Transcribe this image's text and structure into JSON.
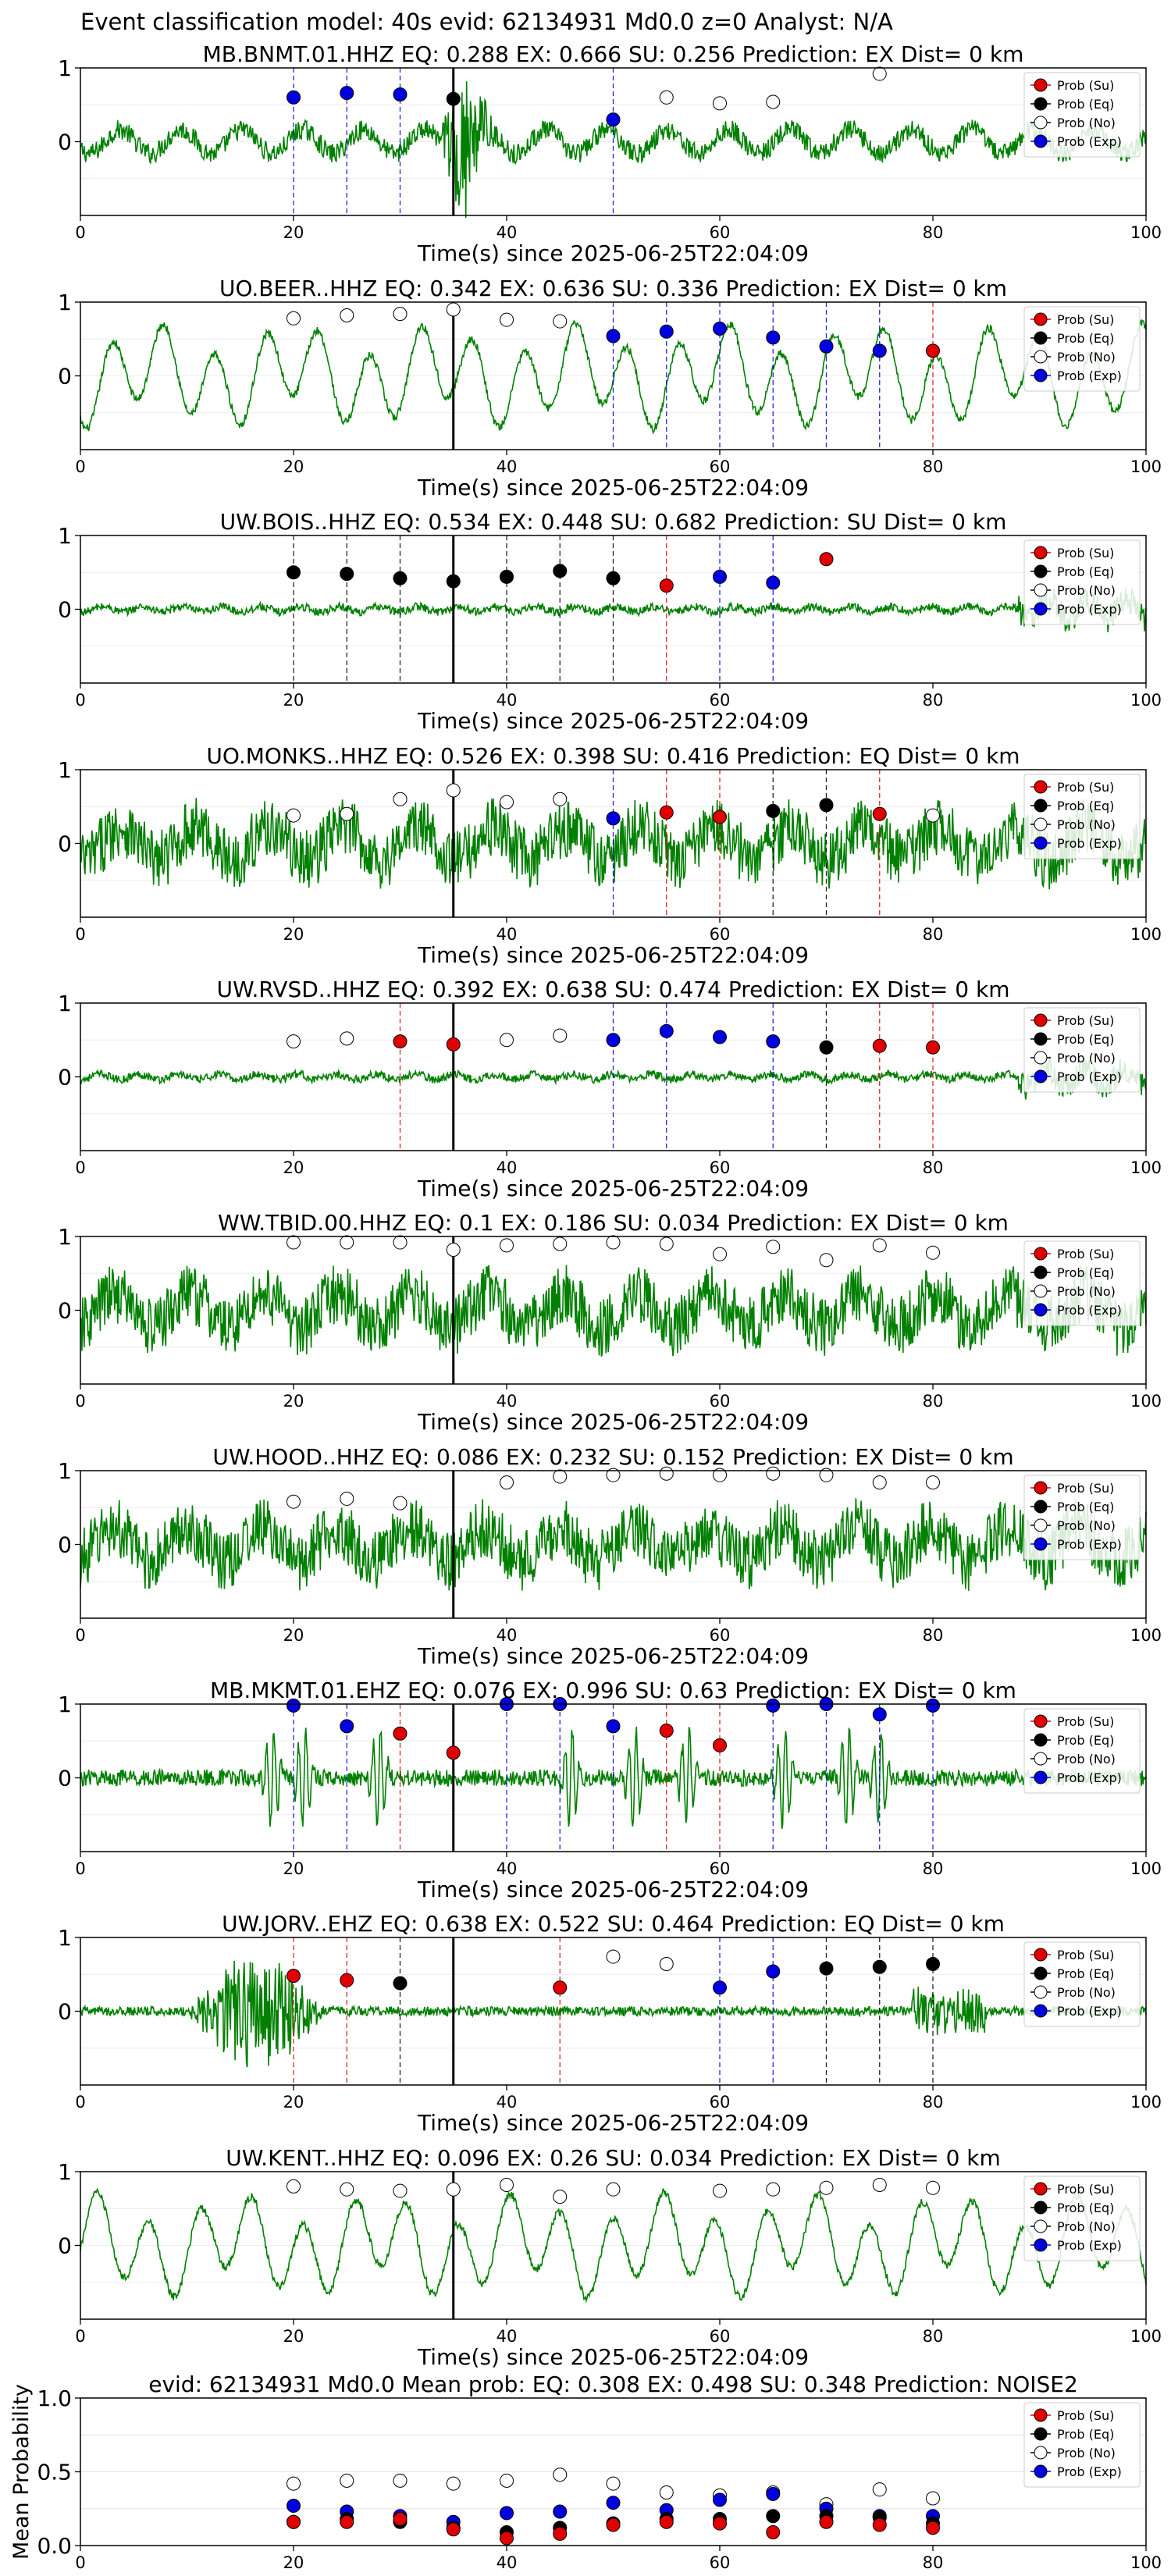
{
  "figure_title": "Event classification model: 40s evid: 62134931 Md0.0 z=0 Analyst: N/A",
  "legend_labels": {
    "su": "Prob (Su)",
    "eq": "Prob (Eq)",
    "no": "Prob (No)",
    "exp": "Prob (Exp)"
  },
  "colors": {
    "su": "#e00000",
    "eq": "#000000",
    "no": "#ffffff",
    "exp": "#0000e0",
    "waveform": "#008000"
  },
  "chart_data": [
    {
      "type": "line",
      "title": "MB.BNMT.01.HHZ   EQ: 0.288  EX: 0.666  SU: 0.256   Prediction: EX    Dist= 0 km",
      "xlabel": "Time(s) since 2025-06-25T22:04:09",
      "xlim": [
        0,
        100
      ],
      "ylim": [
        -1,
        1
      ],
      "yticks": [
        "0",
        "1"
      ],
      "xticks": [
        "0",
        "20",
        "40",
        "60",
        "80",
        "100"
      ],
      "event_line_x": 35,
      "waveform_style": "moderate",
      "grid": true,
      "legend": "top-right",
      "windows": [
        20,
        25,
        30,
        35,
        40,
        45,
        50,
        55,
        60,
        65,
        70,
        75,
        80
      ],
      "points": {
        "su": [],
        "eq": [
          [
            35,
            0.58
          ]
        ],
        "no": [
          [
            55,
            0.6
          ],
          [
            60,
            0.52
          ],
          [
            65,
            0.54
          ],
          [
            75,
            0.92
          ]
        ],
        "exp": [
          [
            20,
            0.6
          ],
          [
            25,
            0.66
          ],
          [
            30,
            0.64
          ],
          [
            50,
            0.3
          ]
        ]
      },
      "vlines": {
        "exp": [
          20,
          25,
          30,
          50
        ]
      }
    },
    {
      "type": "line",
      "title": "UO.BEER..HHZ   EQ: 0.342  EX: 0.636  SU: 0.336   Prediction: EX    Dist= 0 km",
      "xlabel": "Time(s) since 2025-06-25T22:04:09",
      "xlim": [
        0,
        100
      ],
      "ylim": [
        -1,
        1
      ],
      "yticks": [
        "0",
        "1"
      ],
      "xticks": [
        "0",
        "20",
        "40",
        "60",
        "80",
        "100"
      ],
      "event_line_x": 35,
      "waveform_style": "oscillatory",
      "grid": true,
      "legend": "top-right",
      "points": {
        "su": [
          [
            80,
            0.34
          ]
        ],
        "eq": [],
        "no": [
          [
            20,
            0.78
          ],
          [
            25,
            0.82
          ],
          [
            30,
            0.84
          ],
          [
            35,
            0.9
          ],
          [
            40,
            0.76
          ],
          [
            45,
            0.74
          ]
        ],
        "exp": [
          [
            50,
            0.54
          ],
          [
            55,
            0.6
          ],
          [
            60,
            0.64
          ],
          [
            65,
            0.52
          ],
          [
            70,
            0.4
          ],
          [
            75,
            0.34
          ]
        ]
      },
      "vlines": {
        "exp": [
          50,
          55,
          60,
          65,
          70,
          75
        ],
        "su": [
          80
        ]
      }
    },
    {
      "type": "line",
      "title": "UW.BOIS..HHZ   EQ: 0.534  EX: 0.448  SU: 0.682   Prediction: SU    Dist= 0 km",
      "xlabel": "Time(s) since 2025-06-25T22:04:09",
      "xlim": [
        0,
        100
      ],
      "ylim": [
        -1,
        1
      ],
      "yticks": [
        "0",
        "1"
      ],
      "xticks": [
        "0",
        "20",
        "40",
        "60",
        "80",
        "100"
      ],
      "event_line_x": 35,
      "waveform_style": "quiet",
      "grid": true,
      "legend": "top-right",
      "points": {
        "su": [
          [
            55,
            0.32
          ],
          [
            70,
            0.68
          ]
        ],
        "eq": [
          [
            20,
            0.5
          ],
          [
            25,
            0.48
          ],
          [
            30,
            0.42
          ],
          [
            35,
            0.38
          ],
          [
            40,
            0.44
          ],
          [
            45,
            0.52
          ],
          [
            50,
            0.42
          ]
        ],
        "no": [],
        "exp": [
          [
            60,
            0.44
          ],
          [
            65,
            0.36
          ]
        ]
      },
      "vlines": {
        "eq": [
          20,
          25,
          30,
          40,
          45,
          50
        ],
        "su": [
          55
        ],
        "exp": [
          60,
          65
        ]
      }
    },
    {
      "type": "line",
      "title": "UO.MONKS..HHZ   EQ: 0.526  EX: 0.398  SU: 0.416   Prediction: EQ    Dist= 0 km",
      "xlabel": "Time(s) since 2025-06-25T22:04:09",
      "xlim": [
        0,
        100
      ],
      "ylim": [
        -1,
        1
      ],
      "yticks": [
        "0",
        "1"
      ],
      "xticks": [
        "0",
        "20",
        "40",
        "60",
        "80",
        "100"
      ],
      "event_line_x": 35,
      "waveform_style": "noisy",
      "grid": true,
      "legend": "top-right",
      "points": {
        "su": [
          [
            55,
            0.42
          ],
          [
            60,
            0.36
          ],
          [
            75,
            0.4
          ]
        ],
        "eq": [
          [
            65,
            0.44
          ],
          [
            70,
            0.52
          ]
        ],
        "no": [
          [
            20,
            0.38
          ],
          [
            25,
            0.4
          ],
          [
            30,
            0.6
          ],
          [
            35,
            0.72
          ],
          [
            40,
            0.56
          ],
          [
            45,
            0.6
          ],
          [
            80,
            0.38
          ]
        ],
        "exp": [
          [
            50,
            0.34
          ]
        ]
      },
      "vlines": {
        "exp": [
          50
        ],
        "su": [
          55,
          60,
          75
        ],
        "eq": [
          65,
          70
        ]
      }
    },
    {
      "type": "line",
      "title": "UW.RVSD..HHZ   EQ: 0.392  EX: 0.638  SU: 0.474   Prediction: EX    Dist= 0 km",
      "xlabel": "Time(s) since 2025-06-25T22:04:09",
      "xlim": [
        0,
        100
      ],
      "ylim": [
        -1,
        1
      ],
      "yticks": [
        "0",
        "1"
      ],
      "xticks": [
        "0",
        "20",
        "40",
        "60",
        "80",
        "100"
      ],
      "event_line_x": 35,
      "waveform_style": "quiet",
      "grid": true,
      "legend": "top-right",
      "points": {
        "su": [
          [
            30,
            0.48
          ],
          [
            35,
            0.44
          ],
          [
            75,
            0.42
          ],
          [
            80,
            0.4
          ]
        ],
        "eq": [
          [
            70,
            0.4
          ]
        ],
        "no": [
          [
            20,
            0.48
          ],
          [
            25,
            0.52
          ],
          [
            40,
            0.5
          ],
          [
            45,
            0.56
          ]
        ],
        "exp": [
          [
            50,
            0.5
          ],
          [
            55,
            0.62
          ],
          [
            60,
            0.54
          ],
          [
            65,
            0.48
          ]
        ]
      },
      "vlines": {
        "su": [
          30,
          75,
          80
        ],
        "exp": [
          50,
          55,
          65
        ],
        "eq": [
          70
        ]
      }
    },
    {
      "type": "line",
      "title": "WW.TBID.00.HHZ   EQ: 0.1  EX: 0.186  SU: 0.034   Prediction: EX    Dist= 0 km",
      "xlabel": "Time(s) since 2025-06-25T22:04:09",
      "xlim": [
        0,
        100
      ],
      "ylim": [
        -1,
        1
      ],
      "yticks": [
        "0",
        "1"
      ],
      "xticks": [
        "0",
        "20",
        "40",
        "60",
        "80",
        "100"
      ],
      "event_line_x": 35,
      "waveform_style": "noisy",
      "grid": true,
      "legend": "top-right",
      "points": {
        "su": [],
        "eq": [],
        "no": [
          [
            20,
            0.92
          ],
          [
            25,
            0.92
          ],
          [
            30,
            0.92
          ],
          [
            35,
            0.82
          ],
          [
            40,
            0.88
          ],
          [
            45,
            0.9
          ],
          [
            50,
            0.92
          ],
          [
            55,
            0.9
          ],
          [
            60,
            0.76
          ],
          [
            65,
            0.86
          ],
          [
            70,
            0.68
          ],
          [
            75,
            0.88
          ],
          [
            80,
            0.78
          ]
        ],
        "exp": []
      },
      "vlines": {}
    },
    {
      "type": "line",
      "title": "UW.HOOD..HHZ   EQ: 0.086  EX: 0.232  SU: 0.152   Prediction: EX    Dist= 0 km",
      "xlabel": "Time(s) since 2025-06-25T22:04:09",
      "xlim": [
        0,
        100
      ],
      "ylim": [
        -1,
        1
      ],
      "yticks": [
        "0",
        "1"
      ],
      "xticks": [
        "0",
        "20",
        "40",
        "60",
        "80",
        "100"
      ],
      "event_line_x": 35,
      "waveform_style": "noisy",
      "grid": true,
      "legend": "top-right",
      "points": {
        "su": [],
        "eq": [],
        "no": [
          [
            20,
            0.58
          ],
          [
            25,
            0.62
          ],
          [
            30,
            0.56
          ],
          [
            40,
            0.84
          ],
          [
            45,
            0.92
          ],
          [
            50,
            0.94
          ],
          [
            55,
            0.96
          ],
          [
            60,
            0.94
          ],
          [
            65,
            0.96
          ],
          [
            70,
            0.94
          ],
          [
            75,
            0.84
          ],
          [
            80,
            0.84
          ]
        ],
        "exp": []
      },
      "vlines": {}
    },
    {
      "type": "line",
      "title": "MB.MKMT.01.EHZ   EQ: 0.076  EX: 0.996  SU: 0.63   Prediction: EX    Dist= 0 km",
      "xlabel": "Time(s) since 2025-06-25T22:04:09",
      "xlim": [
        0,
        100
      ],
      "ylim": [
        -1,
        1
      ],
      "yticks": [
        "0",
        "1"
      ],
      "xticks": [
        "0",
        "20",
        "40",
        "60",
        "80",
        "100"
      ],
      "event_line_x": 35,
      "waveform_style": "spiky",
      "grid": true,
      "legend": "top-right",
      "points": {
        "su": [
          [
            30,
            0.6
          ],
          [
            35,
            0.34
          ],
          [
            55,
            0.64
          ],
          [
            60,
            0.44
          ]
        ],
        "eq": [],
        "no": [],
        "exp": [
          [
            20,
            0.98
          ],
          [
            25,
            0.7
          ],
          [
            40,
            1.0
          ],
          [
            45,
            1.0
          ],
          [
            50,
            0.7
          ],
          [
            65,
            0.98
          ],
          [
            70,
            1.0
          ],
          [
            75,
            0.86
          ],
          [
            80,
            0.98
          ]
        ]
      },
      "vlines": {
        "exp": [
          20,
          25,
          40,
          45,
          50,
          65,
          70,
          75,
          80
        ],
        "su": [
          30,
          55,
          60
        ]
      }
    },
    {
      "type": "line",
      "title": "UW.JORV..EHZ   EQ: 0.638  EX: 0.522  SU: 0.464   Prediction: EQ    Dist= 0 km",
      "xlabel": "Time(s) since 2025-06-25T22:04:09",
      "xlim": [
        0,
        100
      ],
      "ylim": [
        -1,
        1
      ],
      "yticks": [
        "0",
        "1"
      ],
      "xticks": [
        "0",
        "20",
        "40",
        "60",
        "80",
        "100"
      ],
      "event_line_x": 35,
      "waveform_style": "burst",
      "grid": true,
      "legend": "top-right",
      "points": {
        "su": [
          [
            20,
            0.48
          ],
          [
            25,
            0.42
          ],
          [
            45,
            0.32
          ]
        ],
        "eq": [
          [
            30,
            0.38
          ],
          [
            70,
            0.58
          ],
          [
            75,
            0.6
          ],
          [
            80,
            0.64
          ]
        ],
        "no": [
          [
            50,
            0.74
          ],
          [
            55,
            0.64
          ]
        ],
        "exp": [
          [
            60,
            0.32
          ],
          [
            65,
            0.54
          ]
        ]
      },
      "vlines": {
        "su": [
          20,
          25,
          45
        ],
        "eq": [
          30,
          70,
          75,
          80
        ],
        "exp": [
          60,
          65
        ]
      }
    },
    {
      "type": "line",
      "title": "UW.KENT..HHZ   EQ: 0.096  EX: 0.26  SU: 0.034   Prediction: EX    Dist= 0 km",
      "xlabel": "Time(s) since 2025-06-25T22:04:09",
      "xlim": [
        0,
        100
      ],
      "ylim": [
        -1,
        1
      ],
      "yticks": [
        "0",
        "1"
      ],
      "xticks": [
        "0",
        "20",
        "40",
        "60",
        "80",
        "100"
      ],
      "event_line_x": 35,
      "waveform_style": "oscillatory",
      "grid": true,
      "legend": "top-right",
      "points": {
        "su": [],
        "eq": [],
        "no": [
          [
            20,
            0.8
          ],
          [
            25,
            0.76
          ],
          [
            30,
            0.74
          ],
          [
            35,
            0.76
          ],
          [
            40,
            0.82
          ],
          [
            45,
            0.66
          ],
          [
            50,
            0.76
          ],
          [
            60,
            0.74
          ],
          [
            65,
            0.76
          ],
          [
            70,
            0.78
          ],
          [
            75,
            0.82
          ],
          [
            80,
            0.78
          ]
        ],
        "exp": []
      },
      "vlines": {}
    },
    {
      "type": "scatter",
      "title": "evid: 62134931  Md0.0   Mean prob:   EQ: 0.308  EX: 0.498  SU: 0.348   Prediction: NOISE2",
      "ylabel": "Mean Probability",
      "xlim": [
        0,
        100
      ],
      "ylim": [
        0,
        1
      ],
      "yticks": [
        "0.0",
        "0.5",
        "1.0"
      ],
      "ytick_values": [
        0,
        0.5,
        1.0
      ],
      "xticks": [
        "0",
        "20",
        "40",
        "60",
        "80",
        "100"
      ],
      "grid": true,
      "legend": "top-right",
      "points": {
        "no": [
          [
            20,
            0.42
          ],
          [
            25,
            0.44
          ],
          [
            30,
            0.44
          ],
          [
            35,
            0.42
          ],
          [
            40,
            0.44
          ],
          [
            45,
            0.48
          ],
          [
            50,
            0.42
          ],
          [
            55,
            0.36
          ],
          [
            60,
            0.34
          ],
          [
            65,
            0.36
          ],
          [
            70,
            0.28
          ],
          [
            75,
            0.38
          ],
          [
            80,
            0.32
          ]
        ],
        "exp": [
          [
            20,
            0.27
          ],
          [
            25,
            0.23
          ],
          [
            30,
            0.2
          ],
          [
            35,
            0.16
          ],
          [
            40,
            0.22
          ],
          [
            45,
            0.23
          ],
          [
            50,
            0.29
          ],
          [
            55,
            0.24
          ],
          [
            60,
            0.31
          ],
          [
            65,
            0.35
          ],
          [
            70,
            0.25
          ],
          [
            75,
            0.2
          ],
          [
            80,
            0.2
          ]
        ],
        "eq": [
          [
            20,
            0.16
          ],
          [
            25,
            0.18
          ],
          [
            30,
            0.16
          ],
          [
            35,
            0.12
          ],
          [
            40,
            0.09
          ],
          [
            45,
            0.12
          ],
          [
            50,
            0.15
          ],
          [
            55,
            0.18
          ],
          [
            60,
            0.18
          ],
          [
            65,
            0.2
          ],
          [
            70,
            0.2
          ],
          [
            75,
            0.19
          ],
          [
            80,
            0.15
          ]
        ],
        "su": [
          [
            20,
            0.16
          ],
          [
            25,
            0.16
          ],
          [
            30,
            0.18
          ],
          [
            35,
            0.11
          ],
          [
            40,
            0.05
          ],
          [
            45,
            0.08
          ],
          [
            50,
            0.14
          ],
          [
            55,
            0.16
          ],
          [
            60,
            0.15
          ],
          [
            65,
            0.09
          ],
          [
            70,
            0.16
          ],
          [
            75,
            0.14
          ],
          [
            80,
            0.12
          ]
        ]
      }
    }
  ]
}
